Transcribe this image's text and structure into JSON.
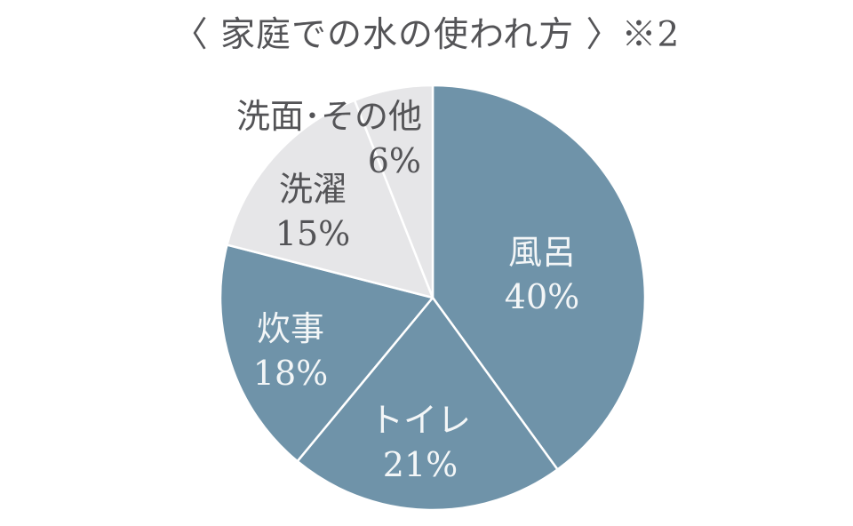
{
  "chart_data": {
    "type": "pie",
    "title": "〈 家庭での水の使われ方 〉※2",
    "direction": "clockwise",
    "start_angle_deg": 0,
    "divider_color": "#ffffff",
    "legend": "none",
    "categories": [
      "風呂",
      "トイレ",
      "炊事",
      "洗濯",
      "洗面･その他"
    ],
    "values": [
      40,
      21,
      18,
      15,
      6
    ],
    "segments": [
      {
        "label": "風呂",
        "value": 40,
        "pct_label": "40%",
        "color": "#6f93a9",
        "label_color": "#f3f6f7"
      },
      {
        "label": "トイレ",
        "value": 21,
        "pct_label": "21%",
        "color": "#6f93a9",
        "label_color": "#f3f6f7"
      },
      {
        "label": "炊事",
        "value": 18,
        "pct_label": "18%",
        "color": "#6f93a9",
        "label_color": "#f3f6f7"
      },
      {
        "label": "洗濯",
        "value": 15,
        "pct_label": "15%",
        "color": "#e6e6e8",
        "label_color": "#545457"
      },
      {
        "label": "洗面･その他",
        "value": 6,
        "pct_label": "6%",
        "color": "#e6e6e8",
        "label_color": "#545457"
      }
    ]
  }
}
